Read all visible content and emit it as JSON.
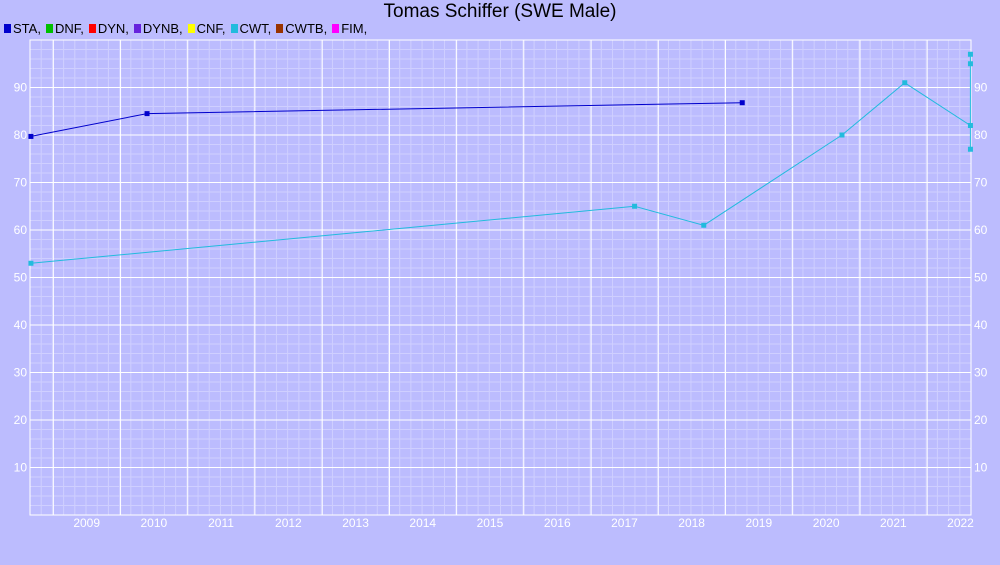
{
  "chart_data": {
    "type": "line",
    "title": "Tomas Schiffer (SWE Male)",
    "xlabel": "",
    "ylabel": "",
    "x_ticks": [
      "2009",
      "2010",
      "2011",
      "2012",
      "2013",
      "2014",
      "2015",
      "2016",
      "2017",
      "2018",
      "2019",
      "2020",
      "2021",
      "2022"
    ],
    "y_ticks": [
      10,
      20,
      30,
      40,
      50,
      60,
      70,
      80,
      90
    ],
    "xlim": [
      "2008-08-27",
      "2022-08-27"
    ],
    "ylim": [
      0,
      100
    ],
    "grid": true,
    "legend_position": "top-left",
    "legend": [
      {
        "name": "STA",
        "color": "#0000cc"
      },
      {
        "name": "DNF",
        "color": "#00c000"
      },
      {
        "name": "DYN",
        "color": "#ff0000"
      },
      {
        "name": "DYNB",
        "color": "#6622dd"
      },
      {
        "name": "CNF",
        "color": "#ffff00"
      },
      {
        "name": "CWT",
        "color": "#22bbdd"
      },
      {
        "name": "CWTB",
        "color": "#993300"
      },
      {
        "name": "FIM",
        "color": "#ff00ff"
      }
    ],
    "series": [
      {
        "name": "STA",
        "color": "#0000cc",
        "points": [
          {
            "x": "2008-09-01",
            "y": 79.7
          },
          {
            "x": "2010-05-25",
            "y": 84.5
          },
          {
            "x": "2019-04-02",
            "y": 86.8
          }
        ]
      },
      {
        "name": "CWT",
        "color": "#22bbdd",
        "points": [
          {
            "x": "2008-09-01",
            "y": 53.0
          },
          {
            "x": "2017-08-25",
            "y": 65.0
          },
          {
            "x": "2018-09-05",
            "y": 61.0
          },
          {
            "x": "2020-09-25",
            "y": 80.0
          },
          {
            "x": "2021-09-01",
            "y": 91.0
          },
          {
            "x": "2022-08-24",
            "y": 82.0
          },
          {
            "x": "2022-08-24",
            "y": 77.0
          },
          {
            "x": "2022-08-24",
            "y": 95.0
          },
          {
            "x": "2022-08-24",
            "y": 97.0
          }
        ]
      }
    ]
  }
}
